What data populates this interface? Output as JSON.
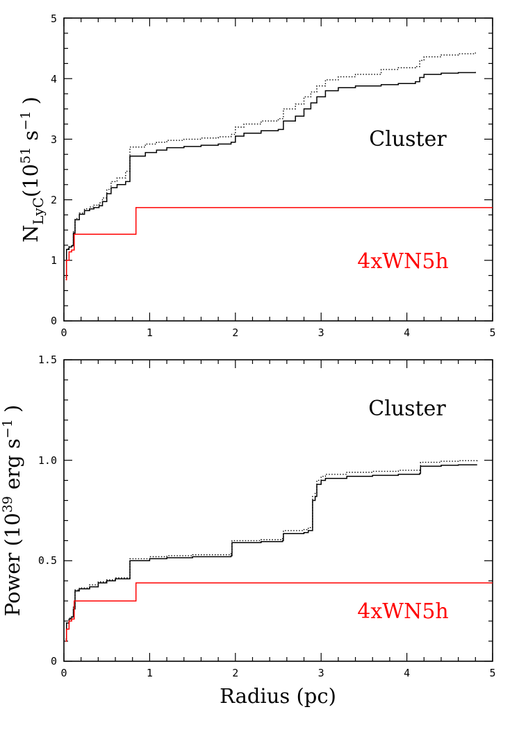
{
  "chart_data": [
    {
      "type": "line",
      "xlabel": "",
      "ylabel": {
        "main": "N",
        "sub": "LyC",
        "pre": "(10",
        "sup": "51",
        "mid": " s",
        "sup2": "−1",
        "post": " )"
      },
      "xlim": [
        0,
        5
      ],
      "ylim": [
        0,
        5
      ],
      "x_ticks": [
        "0",
        "1",
        "2",
        "3",
        "4",
        "5"
      ],
      "y_ticks": [
        "0",
        "1",
        "2",
        "3",
        "4",
        "5"
      ],
      "y_tick_values": [
        0,
        1,
        2,
        3,
        4,
        5
      ],
      "annotations": [
        {
          "text": "Cluster",
          "color": "#000000"
        },
        {
          "text": "4xWN5h",
          "color": "#ff0000"
        }
      ],
      "series": [
        {
          "style": "solid",
          "color": "#000000",
          "points": [
            [
              0.02,
              0.72
            ],
            [
              0.03,
              1.18
            ],
            [
              0.06,
              1.22
            ],
            [
              0.09,
              1.24
            ],
            [
              0.11,
              1.45
            ],
            [
              0.13,
              1.67
            ],
            [
              0.18,
              1.76
            ],
            [
              0.24,
              1.82
            ],
            [
              0.3,
              1.85
            ],
            [
              0.35,
              1.87
            ],
            [
              0.41,
              1.9
            ],
            [
              0.45,
              1.97
            ],
            [
              0.5,
              2.1
            ],
            [
              0.55,
              2.2
            ],
            [
              0.62,
              2.25
            ],
            [
              0.72,
              2.3
            ],
            [
              0.77,
              2.72
            ],
            [
              0.95,
              2.78
            ],
            [
              1.08,
              2.82
            ],
            [
              1.2,
              2.86
            ],
            [
              1.4,
              2.88
            ],
            [
              1.6,
              2.9
            ],
            [
              1.8,
              2.92
            ],
            [
              1.95,
              2.95
            ],
            [
              2.0,
              3.05
            ],
            [
              2.1,
              3.1
            ],
            [
              2.3,
              3.14
            ],
            [
              2.5,
              3.16
            ],
            [
              2.56,
              3.3
            ],
            [
              2.7,
              3.38
            ],
            [
              2.8,
              3.5
            ],
            [
              2.88,
              3.6
            ],
            [
              2.95,
              3.7
            ],
            [
              3.05,
              3.8
            ],
            [
              3.2,
              3.85
            ],
            [
              3.4,
              3.88
            ],
            [
              3.7,
              3.9
            ],
            [
              3.9,
              3.92
            ],
            [
              4.1,
              3.95
            ],
            [
              4.15,
              4.02
            ],
            [
              4.2,
              4.07
            ],
            [
              4.4,
              4.09
            ],
            [
              4.6,
              4.1
            ],
            [
              4.8,
              4.11
            ]
          ]
        },
        {
          "style": "dotted",
          "color": "#000000",
          "points": [
            [
              0.02,
              0.72
            ],
            [
              0.03,
              1.19
            ],
            [
              0.06,
              1.23
            ],
            [
              0.09,
              1.25
            ],
            [
              0.11,
              1.47
            ],
            [
              0.13,
              1.69
            ],
            [
              0.18,
              1.78
            ],
            [
              0.24,
              1.85
            ],
            [
              0.3,
              1.88
            ],
            [
              0.35,
              1.91
            ],
            [
              0.41,
              1.95
            ],
            [
              0.45,
              2.03
            ],
            [
              0.5,
              2.17
            ],
            [
              0.55,
              2.3
            ],
            [
              0.62,
              2.36
            ],
            [
              0.72,
              2.47
            ],
            [
              0.77,
              2.87
            ],
            [
              0.95,
              2.92
            ],
            [
              1.08,
              2.95
            ],
            [
              1.2,
              2.98
            ],
            [
              1.4,
              3.0
            ],
            [
              1.6,
              3.02
            ],
            [
              1.8,
              3.04
            ],
            [
              1.95,
              3.08
            ],
            [
              2.0,
              3.2
            ],
            [
              2.1,
              3.25
            ],
            [
              2.3,
              3.3
            ],
            [
              2.5,
              3.34
            ],
            [
              2.56,
              3.5
            ],
            [
              2.7,
              3.58
            ],
            [
              2.8,
              3.7
            ],
            [
              2.88,
              3.78
            ],
            [
              2.95,
              3.88
            ],
            [
              3.05,
              3.98
            ],
            [
              3.2,
              4.03
            ],
            [
              3.4,
              4.07
            ],
            [
              3.7,
              4.15
            ],
            [
              3.9,
              4.18
            ],
            [
              4.1,
              4.2
            ],
            [
              4.15,
              4.3
            ],
            [
              4.2,
              4.36
            ],
            [
              4.4,
              4.39
            ],
            [
              4.6,
              4.41
            ],
            [
              4.8,
              4.43
            ]
          ]
        },
        {
          "style": "solid",
          "color": "#ff0000",
          "points": [
            [
              0.02,
              0.68
            ],
            [
              0.03,
              1.0
            ],
            [
              0.06,
              1.14
            ],
            [
              0.09,
              1.17
            ],
            [
              0.12,
              1.43
            ],
            [
              0.84,
              1.43
            ],
            [
              0.84,
              1.87
            ],
            [
              5.0,
              1.87
            ]
          ]
        }
      ]
    },
    {
      "type": "line",
      "xlabel": "Radius (pc)",
      "ylabel": {
        "pre": "Power (10",
        "sup": "39",
        "mid": " erg s",
        "sup2": "−1",
        "post": " )"
      },
      "xlim": [
        0,
        5
      ],
      "ylim": [
        0,
        1.5
      ],
      "x_ticks": [
        "0",
        "1",
        "2",
        "3",
        "4",
        "5"
      ],
      "y_ticks": [
        "0",
        "0.5",
        "1.0",
        "1.5"
      ],
      "y_tick_values": [
        0,
        0.5,
        1.0,
        1.5
      ],
      "annotations": [
        {
          "text": "Cluster",
          "color": "#000000"
        },
        {
          "text": "4xWN5h",
          "color": "#ff0000"
        }
      ],
      "series": [
        {
          "style": "solid",
          "color": "#000000",
          "points": [
            [
              0.02,
              0.11
            ],
            [
              0.03,
              0.19
            ],
            [
              0.06,
              0.21
            ],
            [
              0.09,
              0.22
            ],
            [
              0.11,
              0.26
            ],
            [
              0.13,
              0.35
            ],
            [
              0.18,
              0.36
            ],
            [
              0.3,
              0.37
            ],
            [
              0.4,
              0.39
            ],
            [
              0.5,
              0.4
            ],
            [
              0.6,
              0.41
            ],
            [
              0.77,
              0.5
            ],
            [
              1.0,
              0.51
            ],
            [
              1.2,
              0.515
            ],
            [
              1.5,
              0.52
            ],
            [
              1.8,
              0.52
            ],
            [
              1.95,
              0.525
            ],
            [
              1.96,
              0.59
            ],
            [
              2.1,
              0.59
            ],
            [
              2.3,
              0.595
            ],
            [
              2.55,
              0.6
            ],
            [
              2.56,
              0.635
            ],
            [
              2.8,
              0.64
            ],
            [
              2.85,
              0.65
            ],
            [
              2.9,
              0.8
            ],
            [
              2.93,
              0.82
            ],
            [
              2.95,
              0.88
            ],
            [
              3.0,
              0.9
            ],
            [
              3.05,
              0.91
            ],
            [
              3.3,
              0.92
            ],
            [
              3.6,
              0.925
            ],
            [
              3.9,
              0.93
            ],
            [
              4.15,
              0.935
            ],
            [
              4.16,
              0.97
            ],
            [
              4.4,
              0.975
            ],
            [
              4.6,
              0.977
            ],
            [
              4.82,
              0.977
            ]
          ]
        },
        {
          "style": "dotted",
          "color": "#000000",
          "points": [
            [
              0.02,
              0.11
            ],
            [
              0.03,
              0.19
            ],
            [
              0.06,
              0.215
            ],
            [
              0.09,
              0.225
            ],
            [
              0.11,
              0.27
            ],
            [
              0.13,
              0.355
            ],
            [
              0.18,
              0.365
            ],
            [
              0.3,
              0.38
            ],
            [
              0.4,
              0.395
            ],
            [
              0.5,
              0.405
            ],
            [
              0.6,
              0.415
            ],
            [
              0.77,
              0.51
            ],
            [
              1.0,
              0.52
            ],
            [
              1.2,
              0.525
            ],
            [
              1.5,
              0.53
            ],
            [
              1.8,
              0.53
            ],
            [
              1.95,
              0.535
            ],
            [
              1.96,
              0.6
            ],
            [
              2.1,
              0.6
            ],
            [
              2.3,
              0.605
            ],
            [
              2.55,
              0.61
            ],
            [
              2.56,
              0.65
            ],
            [
              2.8,
              0.655
            ],
            [
              2.85,
              0.665
            ],
            [
              2.9,
              0.82
            ],
            [
              2.93,
              0.84
            ],
            [
              2.95,
              0.9
            ],
            [
              3.0,
              0.92
            ],
            [
              3.05,
              0.93
            ],
            [
              3.3,
              0.94
            ],
            [
              3.6,
              0.945
            ],
            [
              3.9,
              0.95
            ],
            [
              4.15,
              0.955
            ],
            [
              4.16,
              0.99
            ],
            [
              4.4,
              0.995
            ],
            [
              4.6,
              0.998
            ],
            [
              4.82,
              1.0
            ]
          ]
        },
        {
          "style": "solid",
          "color": "#ff0000",
          "points": [
            [
              0.02,
              0.1
            ],
            [
              0.03,
              0.16
            ],
            [
              0.06,
              0.2
            ],
            [
              0.09,
              0.21
            ],
            [
              0.12,
              0.3
            ],
            [
              0.84,
              0.3
            ],
            [
              0.84,
              0.39
            ],
            [
              5.0,
              0.39
            ]
          ]
        }
      ]
    }
  ]
}
